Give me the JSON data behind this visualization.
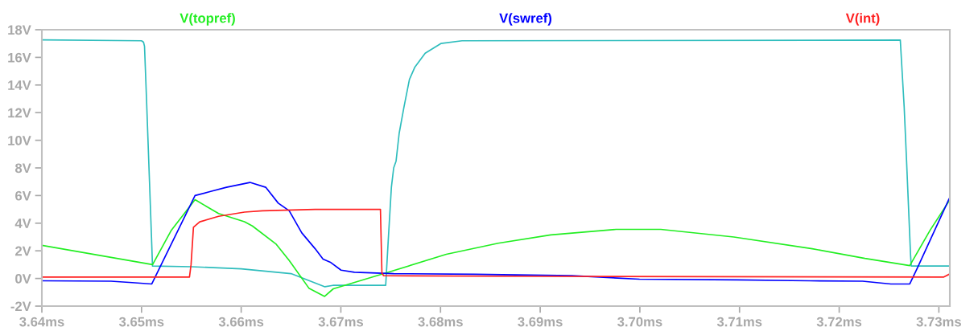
{
  "chart_data": {
    "type": "line",
    "legend": "top",
    "grid": false,
    "marker": "none",
    "line_style": "solid",
    "xlim": [
      3.64,
      3.7311
    ],
    "ylim": [
      -2,
      18
    ],
    "xticks": [
      {
        "value": 3.64,
        "label": "3.64ms"
      },
      {
        "value": 3.65,
        "label": "3.65ms"
      },
      {
        "value": 3.66,
        "label": "3.66ms"
      },
      {
        "value": 3.67,
        "label": "3.67ms"
      },
      {
        "value": 3.68,
        "label": "3.68ms"
      },
      {
        "value": 3.69,
        "label": "3.69ms"
      },
      {
        "value": 3.7,
        "label": "3.70ms"
      },
      {
        "value": 3.71,
        "label": "3.71ms"
      },
      {
        "value": 3.72,
        "label": "3.72ms"
      },
      {
        "value": 3.73,
        "label": "3.73ms"
      }
    ],
    "yticks": [
      {
        "value": -2,
        "label": "-2V"
      },
      {
        "value": 0,
        "label": "0V"
      },
      {
        "value": 2,
        "label": "2V"
      },
      {
        "value": 4,
        "label": "4V"
      },
      {
        "value": 6,
        "label": "6V"
      },
      {
        "value": 8,
        "label": "8V"
      },
      {
        "value": 10,
        "label": "10V"
      },
      {
        "value": 12,
        "label": "12V"
      },
      {
        "value": 14,
        "label": "14V"
      },
      {
        "value": 16,
        "label": "16V"
      },
      {
        "value": 18,
        "label": "18V"
      }
    ],
    "series": [
      {
        "color": "#2ebdbd",
        "x": [
          3.64,
          3.65,
          3.6502,
          3.6503,
          3.6505,
          3.6508,
          3.651,
          3.6511,
          3.655,
          3.66,
          3.665,
          3.6684,
          3.6692,
          3.6745,
          3.67475,
          3.67507,
          3.6753,
          3.67554,
          3.67585,
          3.67633,
          3.67688,
          3.67743,
          3.67846,
          3.68003,
          3.68216,
          3.72613,
          3.72652,
          3.72676,
          3.72716,
          3.72723,
          3.7311
        ],
        "values": [
          17.27,
          17.2,
          17.1,
          16.8,
          13,
          7,
          3,
          0.9,
          0.85,
          0.7,
          0.35,
          -0.6,
          -0.5,
          -0.5,
          2.7,
          6.6,
          8.0,
          8.5,
          10.5,
          12.4,
          14.4,
          15.3,
          16.3,
          17.0,
          17.2,
          17.25,
          12.4,
          8.5,
          1.7,
          0.9,
          0.9
        ]
      },
      {
        "name": "V(topref)",
        "color": "#22ee22",
        "x": [
          3.64,
          3.65111,
          3.653,
          3.65537,
          3.65773,
          3.66033,
          3.66112,
          3.66348,
          3.66482,
          3.66679,
          3.66837,
          3.66924,
          3.67452,
          3.68058,
          3.68578,
          3.69106,
          3.6976,
          3.69894,
          3.7021,
          3.70943,
          3.7173,
          3.72258,
          3.72708,
          3.72913,
          3.73102
        ],
        "values": [
          2.4,
          1.0,
          3.5,
          5.7,
          4.7,
          4.1,
          3.8,
          2.5,
          1.3,
          -0.7,
          -1.3,
          -0.75,
          0.4,
          1.75,
          2.55,
          3.15,
          3.55,
          3.55,
          3.55,
          3.0,
          2.15,
          1.45,
          0.93,
          3.5,
          5.6
        ]
      },
      {
        "name": "V(swref)",
        "color": "#0000ff",
        "x": [
          3.64,
          3.64693,
          3.64906,
          3.65103,
          3.65537,
          3.65694,
          3.65852,
          3.66088,
          3.66246,
          3.66372,
          3.66482,
          3.66608,
          3.66742,
          3.66821,
          3.669,
          3.67002,
          3.67136,
          3.6753,
          3.68342,
          3.69319,
          3.69997,
          3.70974,
          3.71707,
          3.72235,
          3.72519,
          3.72708,
          3.72787,
          3.73102
        ],
        "values": [
          -0.17,
          -0.2,
          -0.3,
          -0.4,
          6.0,
          6.3,
          6.6,
          6.95,
          6.6,
          5.45,
          4.9,
          3.3,
          2.15,
          1.4,
          1.15,
          0.6,
          0.45,
          0.35,
          0.3,
          0.2,
          -0.05,
          -0.1,
          -0.17,
          -0.2,
          -0.4,
          -0.4,
          0.8,
          5.75
        ]
      },
      {
        "name": "V(int)",
        "color": "#ff2020",
        "x": [
          3.64,
          3.65481,
          3.65497,
          3.65521,
          3.65584,
          3.65773,
          3.66033,
          3.66214,
          3.66742,
          3.67397,
          3.67412,
          3.67428,
          3.69,
          3.73046,
          3.73102
        ],
        "values": [
          0.1,
          0.1,
          1.0,
          3.7,
          4.1,
          4.5,
          4.8,
          4.9,
          5.0,
          5.0,
          0.4,
          0.2,
          0.15,
          0.1,
          0.3
        ]
      }
    ]
  }
}
